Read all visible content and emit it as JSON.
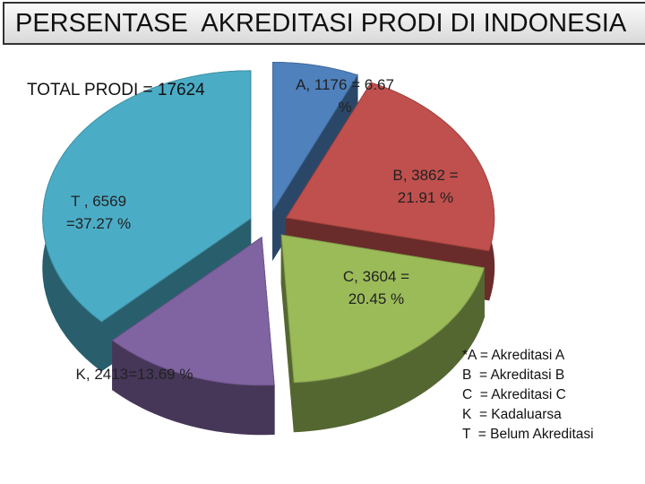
{
  "chart_data": {
    "type": "pie",
    "title": "PERSENTASE  AKREDITASI PRODI DI INDONESIA",
    "annotation": "TOTAL PRODI = 17624",
    "categories": [
      "A",
      "B",
      "C",
      "K",
      "T"
    ],
    "values": [
      1176,
      3862,
      3604,
      2413,
      6569
    ],
    "value_labels": [
      "A, 1176 = 6.67 %",
      "B, 3862 = 21.91 %",
      "C, 3604 = 20.45 %",
      "K, 2413=13.69 %",
      "T , 6569 =37.27 %"
    ],
    "colors": [
      "#4f81bd",
      "#c0504d",
      "#9bbb59",
      "#8064a2",
      "#4bacc6"
    ],
    "notes": [
      "*A = Akreditasi A",
      "B  = Akreditasi B",
      "C  = Akreditasi C",
      "K  = Kadaluarsa",
      "T  = Belum Akreditasi"
    ]
  }
}
